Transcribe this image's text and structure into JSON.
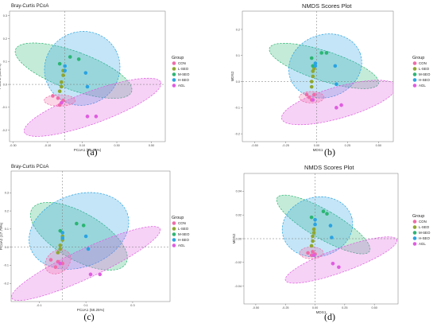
{
  "colors": {
    "CON": "#F06BA8",
    "L-SEO": "#8FA72E",
    "M-SEO": "#2BB673",
    "H-SEO": "#2AA3E2",
    "AGL": "#E05CE0"
  },
  "legend": {
    "title": "Group",
    "items": [
      "CON",
      "L-SEO",
      "M-SEO",
      "H-SEO",
      "AGL"
    ]
  },
  "chart_data": [
    {
      "type": "scatter",
      "id": "a",
      "title": "Bray-Curtis PCoA",
      "xlabel": "PCoA1 (56.86%)",
      "ylabel": "PCoA2 (36.5%)",
      "xlim": [
        -0.32,
        0.58
      ],
      "ylim": [
        -0.25,
        0.32
      ],
      "xticks": [
        -0.3,
        -0.1,
        0.1,
        0.3,
        0.5
      ],
      "yticks": [
        -0.2,
        -0.1,
        0.0,
        0.1,
        0.2,
        0.3
      ],
      "xtick_labels": [
        "-0.30",
        "-0.10",
        "0.10",
        "0.30",
        "0.50"
      ],
      "ytick_labels": [
        "-0.2",
        "-0.1",
        "0.0",
        "0.1",
        "0.2",
        "0.3"
      ],
      "caption": "(a)",
      "series": [
        {
          "name": "CON",
          "points": [
            [
              -0.07,
              -0.05
            ],
            [
              -0.04,
              -0.06
            ],
            [
              -0.01,
              -0.07
            ],
            [
              -0.03,
              -0.09
            ]
          ]
        },
        {
          "name": "L-SEO",
          "points": [
            [
              -0.03,
              -0.03
            ],
            [
              -0.02,
              -0.01
            ],
            [
              -0.02,
              0.01
            ],
            [
              -0.01,
              0.04
            ],
            [
              -0.01,
              0.06
            ]
          ]
        },
        {
          "name": "M-SEO",
          "points": [
            [
              -0.03,
              0.09
            ],
            [
              0.03,
              0.12
            ],
            [
              0.08,
              0.11
            ]
          ]
        },
        {
          "name": "H-SEO",
          "points": [
            [
              0.0,
              0.08
            ],
            [
              0.0,
              0.06
            ],
            [
              0.12,
              0.05
            ],
            [
              0.13,
              -0.01
            ]
          ]
        },
        {
          "name": "AGL",
          "points": [
            [
              -0.02,
              -0.08
            ],
            [
              0.13,
              -0.14
            ],
            [
              0.18,
              -0.14
            ]
          ]
        }
      ],
      "ellipses": [
        {
          "group": "M-SEO",
          "cx": 0.05,
          "cy": 0.06,
          "rx": 0.11,
          "ry": 0.27,
          "angle": -70
        },
        {
          "group": "H-SEO",
          "cx": 0.1,
          "cy": 0.07,
          "rx": 0.22,
          "ry": 0.16,
          "angle": -28
        },
        {
          "group": "AGL",
          "cx": 0.16,
          "cy": -0.1,
          "rx": 0.42,
          "ry": 0.07,
          "angle": -20
        },
        {
          "group": "CON",
          "cx": -0.03,
          "cy": -0.07,
          "rx": 0.09,
          "ry": 0.025,
          "angle": 0
        }
      ]
    },
    {
      "type": "scatter",
      "id": "b",
      "title": "NMDS Scores Plot",
      "xlabel": "MDS1",
      "ylabel": "MDS2",
      "xlim": [
        -0.6,
        0.62
      ],
      "ylim": [
        -0.23,
        0.27
      ],
      "xticks": [
        -0.5,
        -0.25,
        0.0,
        0.25,
        0.5
      ],
      "yticks": [
        -0.2,
        -0.1,
        0.0,
        0.1,
        0.2
      ],
      "xtick_labels": [
        "-0.50",
        "-0.25",
        "0.00",
        "0.25",
        "0.50"
      ],
      "ytick_labels": [
        "-0.2",
        "-0.1",
        "0.0",
        "0.1",
        "0.2"
      ],
      "caption": "(b)",
      "series": [
        {
          "name": "CON",
          "points": [
            [
              -0.08,
              -0.05
            ],
            [
              -0.04,
              -0.07
            ],
            [
              -0.02,
              -0.05
            ],
            [
              -0.06,
              -0.06
            ]
          ]
        },
        {
          "name": "L-SEO",
          "points": [
            [
              -0.04,
              -0.02
            ],
            [
              -0.04,
              0.0
            ],
            [
              -0.03,
              0.02
            ],
            [
              -0.03,
              0.04
            ],
            [
              -0.02,
              0.05
            ]
          ]
        },
        {
          "name": "M-SEO",
          "points": [
            [
              -0.04,
              0.09
            ],
            [
              0.04,
              0.11
            ],
            [
              0.08,
              0.11
            ],
            [
              -0.03,
              0.06
            ]
          ]
        },
        {
          "name": "H-SEO",
          "points": [
            [
              -0.01,
              0.07
            ],
            [
              -0.01,
              0.06
            ],
            [
              0.15,
              0.06
            ],
            [
              0.16,
              -0.01
            ]
          ]
        },
        {
          "name": "AGL",
          "points": [
            [
              -0.03,
              -0.07
            ],
            [
              0.16,
              -0.1
            ],
            [
              0.2,
              -0.09
            ]
          ]
        }
      ],
      "ellipses": [
        {
          "group": "M-SEO",
          "cx": 0.06,
          "cy": 0.06,
          "rx": 0.12,
          "ry": 0.22,
          "angle": -72
        },
        {
          "group": "H-SEO",
          "cx": 0.07,
          "cy": 0.06,
          "rx": 0.3,
          "ry": 0.12,
          "angle": -20
        },
        {
          "group": "AGL",
          "cx": 0.18,
          "cy": -0.08,
          "rx": 0.48,
          "ry": 0.06,
          "angle": -16
        },
        {
          "group": "CON",
          "cx": -0.04,
          "cy": -0.06,
          "rx": 0.1,
          "ry": 0.022,
          "angle": 0
        }
      ]
    },
    {
      "type": "scatter",
      "id": "c",
      "title": "Bray-Curtis PCoA",
      "xlabel": "PCoA1 (58.25%)",
      "ylabel": "PCoA2 (17.79%)",
      "xlim": [
        -0.22,
        0.46
      ],
      "ylim": [
        -0.3,
        0.42
      ],
      "xticks": [
        -0.1,
        0.1,
        0.3
      ],
      "yticks": [
        -0.2,
        -0.1,
        0.0,
        0.1,
        0.2,
        0.3
      ],
      "xtick_labels": [
        "-0.1",
        "0.1",
        "0.3"
      ],
      "ytick_labels": [
        "-0.2",
        "-0.1",
        "0.0",
        "0.1",
        "0.2",
        "0.3"
      ],
      "caption": "(c)",
      "series": [
        {
          "name": "CON",
          "points": [
            [
              -0.05,
              -0.07
            ],
            [
              -0.02,
              -0.08
            ],
            [
              -0.03,
              -0.11
            ],
            [
              0.0,
              -0.09
            ]
          ]
        },
        {
          "name": "L-SEO",
          "points": [
            [
              -0.02,
              -0.03
            ],
            [
              -0.01,
              -0.01
            ],
            [
              -0.01,
              0.01
            ],
            [
              0.0,
              0.04
            ],
            [
              0.0,
              0.06
            ]
          ]
        },
        {
          "name": "M-SEO",
          "points": [
            [
              -0.01,
              0.09
            ],
            [
              0.06,
              0.13
            ],
            [
              0.09,
              0.12
            ]
          ]
        },
        {
          "name": "H-SEO",
          "points": [
            [
              0.0,
              0.08
            ],
            [
              0.0,
              0.05
            ],
            [
              0.1,
              0.06
            ],
            [
              0.11,
              -0.01
            ]
          ]
        },
        {
          "name": "AGL",
          "points": [
            [
              -0.01,
              -0.09
            ],
            [
              0.12,
              -0.15
            ],
            [
              0.16,
              -0.15
            ]
          ]
        }
      ],
      "ellipses": [
        {
          "group": "M-SEO",
          "cx": 0.07,
          "cy": 0.06,
          "rx": 0.1,
          "ry": 0.3,
          "angle": -60
        },
        {
          "group": "H-SEO",
          "cx": 0.07,
          "cy": 0.09,
          "rx": 0.22,
          "ry": 0.2,
          "angle": -20
        },
        {
          "group": "AGL",
          "cx": 0.1,
          "cy": -0.09,
          "rx": 0.35,
          "ry": 0.08,
          "angle": -25
        },
        {
          "group": "CON",
          "cx": -0.02,
          "cy": -0.08,
          "rx": 0.06,
          "ry": 0.06,
          "angle": -40
        }
      ]
    },
    {
      "type": "scatter",
      "id": "d",
      "title": "NMDS Scores Plot",
      "xlabel": "MDS1",
      "ylabel": "MDS2",
      "xlim": [
        -0.6,
        0.7
      ],
      "ylim": [
        -0.055,
        0.055
      ],
      "xticks": [
        -0.5,
        -0.25,
        0.0,
        0.25,
        0.5
      ],
      "yticks": [
        -0.04,
        -0.02,
        0.0,
        0.02,
        0.04
      ],
      "xtick_labels": [
        "-0.50",
        "-0.25",
        "0.00",
        "0.25",
        "0.50"
      ],
      "ytick_labels": [
        "-0.04",
        "-0.02",
        "0.00",
        "0.02",
        "0.04"
      ],
      "caption": "(d)",
      "series": [
        {
          "name": "CON",
          "points": [
            [
              -0.06,
              -0.012
            ],
            [
              -0.03,
              -0.014
            ],
            [
              0.0,
              -0.013
            ],
            [
              -0.02,
              -0.011
            ]
          ]
        },
        {
          "name": "L-SEO",
          "points": [
            [
              -0.03,
              -0.006
            ],
            [
              -0.02,
              -0.002
            ],
            [
              -0.02,
              0.002
            ],
            [
              -0.01,
              0.005
            ],
            [
              -0.01,
              0.008
            ]
          ]
        },
        {
          "name": "M-SEO",
          "points": [
            [
              -0.03,
              0.018
            ],
            [
              0.07,
              0.023
            ],
            [
              0.1,
              0.021
            ]
          ]
        },
        {
          "name": "H-SEO",
          "points": [
            [
              0.0,
              0.016
            ],
            [
              0.0,
              0.012
            ],
            [
              0.13,
              0.011
            ],
            [
              0.14,
              0.001
            ]
          ]
        },
        {
          "name": "AGL",
          "points": [
            [
              -0.01,
              -0.014
            ],
            [
              0.15,
              -0.021
            ],
            [
              0.2,
              -0.024
            ]
          ]
        }
      ],
      "ellipses": [
        {
          "group": "M-SEO",
          "cx": 0.07,
          "cy": 0.012,
          "rx": 0.12,
          "ry": 0.045,
          "angle": -60
        },
        {
          "group": "H-SEO",
          "cx": 0.02,
          "cy": 0.01,
          "rx": 0.3,
          "ry": 0.025,
          "angle": -15
        },
        {
          "group": "AGL",
          "cx": 0.22,
          "cy": -0.018,
          "rx": 0.5,
          "ry": 0.01,
          "angle": -20
        },
        {
          "group": "CON",
          "cx": -0.03,
          "cy": -0.012,
          "rx": 0.1,
          "ry": 0.005,
          "angle": 0
        }
      ]
    }
  ]
}
